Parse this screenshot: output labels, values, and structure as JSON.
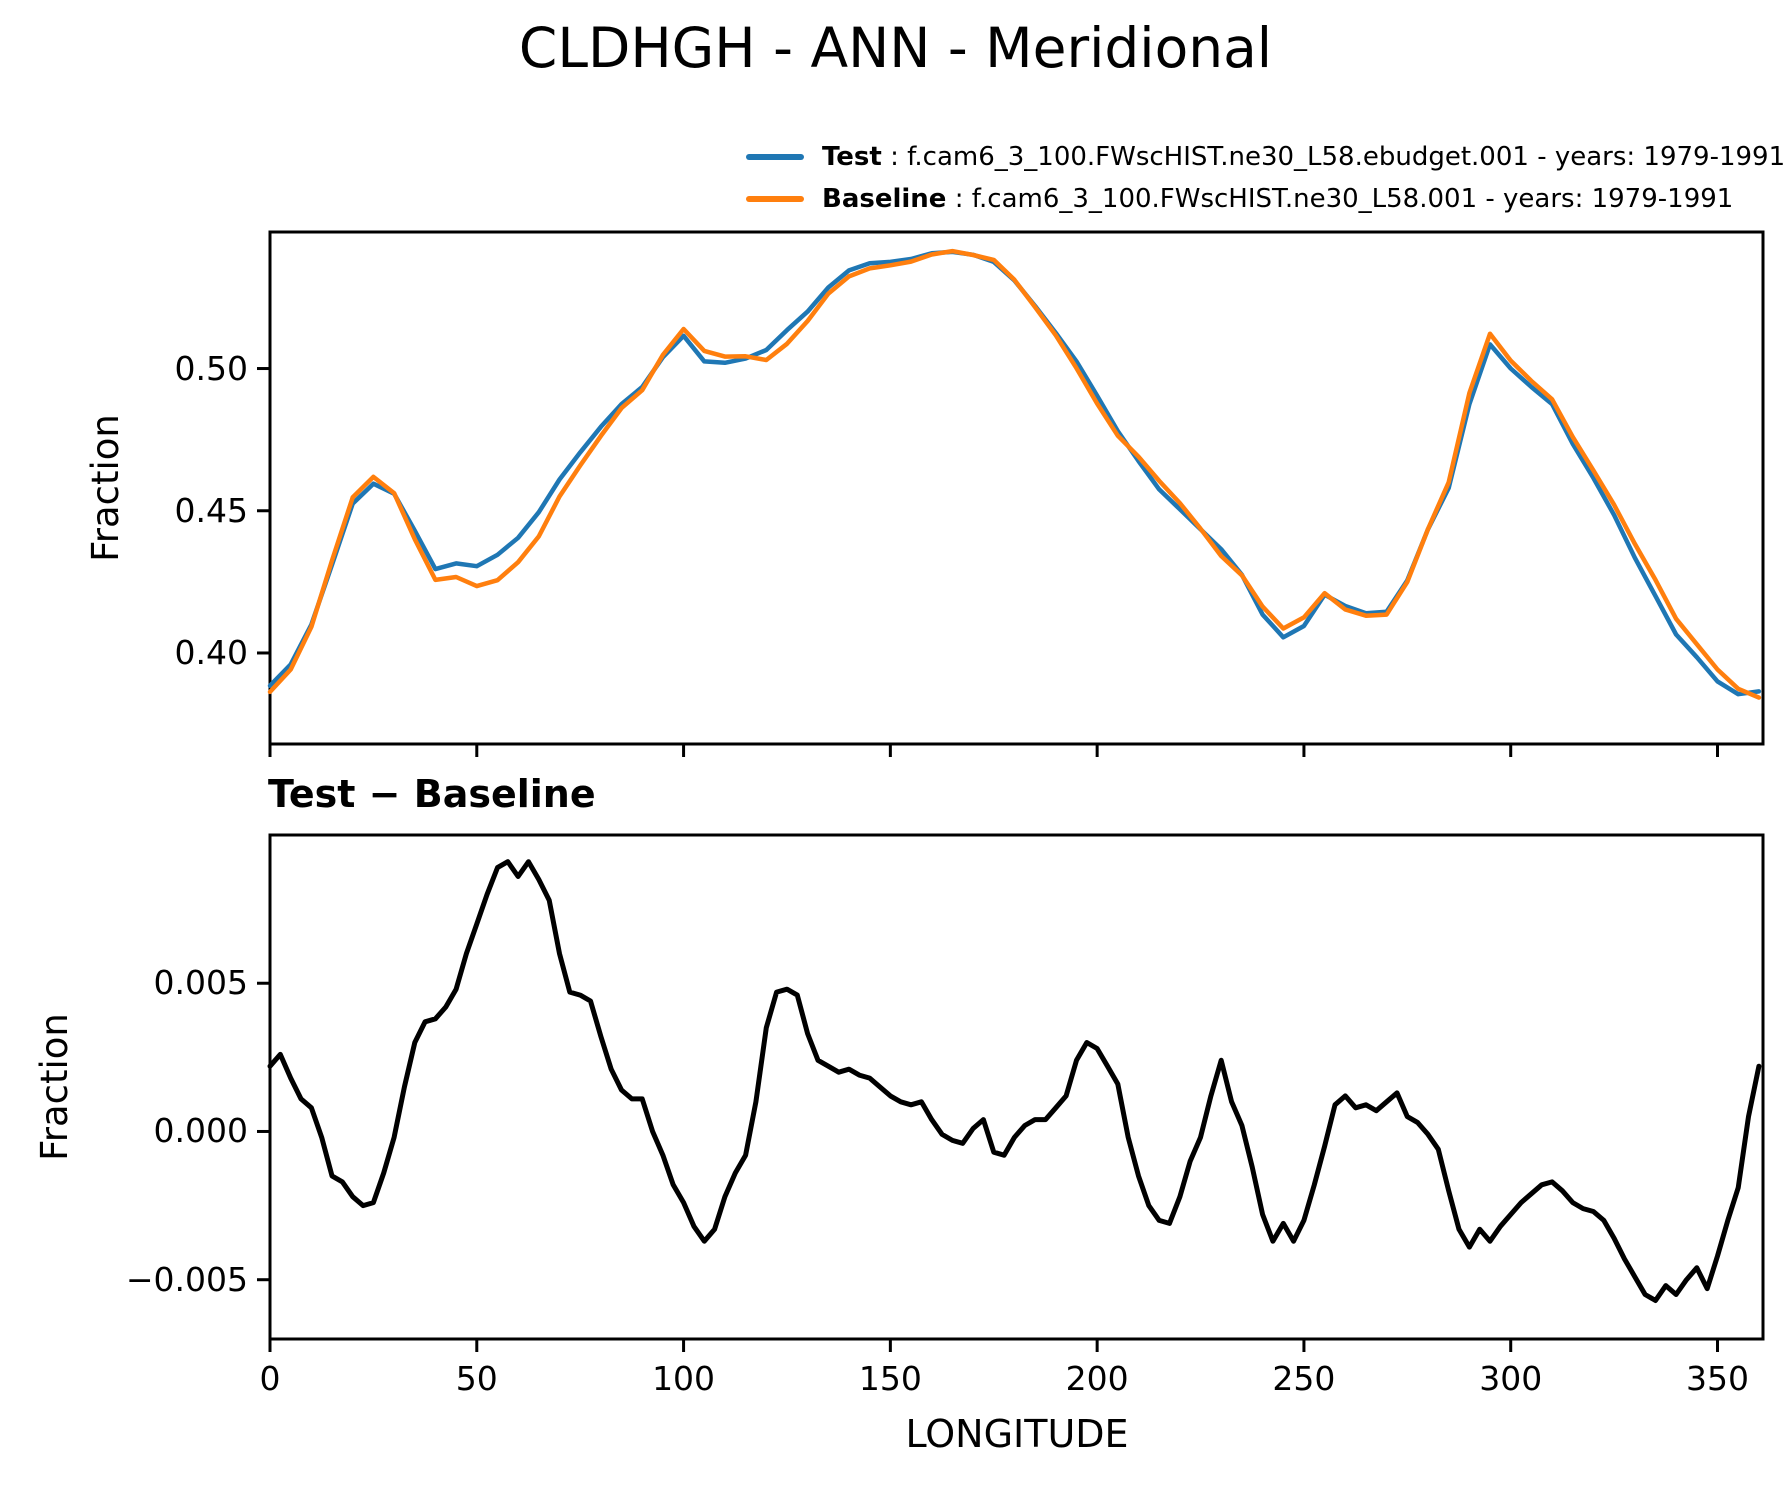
{
  "title": "CLDHGH - ANN - Meridional",
  "legend": [
    {
      "name": "Test",
      "color": "#1f77b4",
      "separator": " : ",
      "text": "f.cam6_3_100.FWscHIST.ne30_L58.ebudget.001 - years: 1979-1991"
    },
    {
      "name": "Baseline",
      "color": "#ff7f0e",
      "separator": " : ",
      "text": "f.cam6_3_100.FWscHIST.ne30_L58.001 - years: 1979-1991"
    }
  ],
  "colors": {
    "test": "#1f77b4",
    "baseline": "#ff7f0e",
    "difference": "#000000",
    "axes": "#000000",
    "background": "#ffffff"
  },
  "chart_data": [
    {
      "type": "line",
      "panel": "top",
      "ylabel": "Fraction",
      "xlabel": "",
      "grid": false,
      "legend_position": "above-axes, frameless, two rows",
      "xlim": [
        0,
        361
      ],
      "ylim": [
        0.368,
        0.548
      ],
      "xticks": {
        "values": [
          0,
          50,
          100,
          150,
          200,
          250,
          300,
          350
        ],
        "labels": []
      },
      "yticks": {
        "values": [
          0.4,
          0.45,
          0.5
        ],
        "labels": [
          "0.40",
          "0.45",
          "0.50"
        ]
      },
      "x": [
        0,
        5,
        10,
        15,
        20,
        25,
        30,
        35,
        40,
        45,
        50,
        55,
        60,
        65,
        70,
        75,
        80,
        85,
        90,
        95,
        100,
        105,
        110,
        115,
        120,
        125,
        130,
        135,
        140,
        145,
        150,
        155,
        160,
        165,
        170,
        175,
        180,
        185,
        190,
        195,
        200,
        205,
        210,
        215,
        220,
        225,
        230,
        235,
        240,
        245,
        250,
        255,
        260,
        265,
        270,
        275,
        280,
        285,
        290,
        295,
        300,
        305,
        310,
        315,
        320,
        325,
        330,
        335,
        340,
        345,
        350,
        355,
        360
      ],
      "series": [
        {
          "name": "Test",
          "color": "#1f77b4",
          "values": [
            0.3885,
            0.396,
            0.41,
            0.431,
            0.4525,
            0.4595,
            0.456,
            0.443,
            0.4295,
            0.4315,
            0.4305,
            0.4345,
            0.4405,
            0.4495,
            0.461,
            0.4705,
            0.4795,
            0.4875,
            0.4935,
            0.504,
            0.5115,
            0.5025,
            0.502,
            0.5035,
            0.5065,
            0.5135,
            0.52,
            0.5285,
            0.5345,
            0.537,
            0.5375,
            0.5385,
            0.5405,
            0.541,
            0.54,
            0.5375,
            0.531,
            0.522,
            0.5125,
            0.5025,
            0.4905,
            0.478,
            0.4675,
            0.4575,
            0.4505,
            0.4435,
            0.4365,
            0.4275,
            0.4135,
            0.4055,
            0.4095,
            0.4205,
            0.4165,
            0.414,
            0.4145,
            0.4255,
            0.4435,
            0.458,
            0.4875,
            0.5085,
            0.5,
            0.4935,
            0.4875,
            0.4735,
            0.4615,
            0.4485,
            0.4335,
            0.42,
            0.4065,
            0.3985,
            0.39,
            0.3855,
            0.3865
          ]
        },
        {
          "name": "Baseline",
          "color": "#ff7f0e",
          "values": [
            0.3863,
            0.3942,
            0.4092,
            0.4325,
            0.4547,
            0.4619,
            0.4562,
            0.44,
            0.4257,
            0.4267,
            0.4235,
            0.4256,
            0.4319,
            0.441,
            0.455,
            0.4659,
            0.4763,
            0.4861,
            0.4924,
            0.5048,
            0.5139,
            0.5062,
            0.5042,
            0.5043,
            0.503,
            0.5087,
            0.5167,
            0.5263,
            0.5324,
            0.5352,
            0.5363,
            0.5376,
            0.5401,
            0.5413,
            0.5399,
            0.5382,
            0.5312,
            0.5216,
            0.5117,
            0.5001,
            0.4877,
            0.4764,
            0.469,
            0.4605,
            0.4527,
            0.4437,
            0.4341,
            0.4273,
            0.4163,
            0.4086,
            0.4125,
            0.421,
            0.4153,
            0.4131,
            0.4135,
            0.425,
            0.4436,
            0.46,
            0.4914,
            0.5122,
            0.5028,
            0.4956,
            0.4892,
            0.4759,
            0.4642,
            0.4521,
            0.4384,
            0.4257,
            0.412,
            0.4031,
            0.3942,
            0.3874,
            0.3843
          ]
        }
      ]
    },
    {
      "type": "line",
      "panel": "bottom",
      "title": "Test − Baseline",
      "ylabel": "Fraction",
      "xlabel": "LONGITUDE",
      "grid": false,
      "xlim": [
        0,
        361
      ],
      "ylim": [
        -0.007,
        0.01
      ],
      "xticks": {
        "values": [
          0,
          50,
          100,
          150,
          200,
          250,
          300,
          350
        ],
        "labels": [
          "0",
          "50",
          "100",
          "150",
          "200",
          "250",
          "300",
          "350"
        ]
      },
      "yticks": {
        "values": [
          0.005,
          0.0,
          -0.005
        ],
        "labels": [
          "0.005",
          "0.000",
          "−0.005"
        ]
      },
      "x_start": 0,
      "x_step": 2.5,
      "series": [
        {
          "name": "Test − Baseline",
          "color": "#000000",
          "values": [
            0.0022,
            0.0026,
            0.0018,
            0.0011,
            0.0008,
            -0.0002,
            -0.0015,
            -0.0017,
            -0.0022,
            -0.0025,
            -0.0024,
            -0.0014,
            -0.0002,
            0.0015,
            0.003,
            0.0037,
            0.0038,
            0.0042,
            0.0048,
            0.006,
            0.007,
            0.008,
            0.0089,
            0.0091,
            0.0086,
            0.0091,
            0.0085,
            0.0078,
            0.006,
            0.0047,
            0.0046,
            0.0044,
            0.0032,
            0.0021,
            0.0014,
            0.0011,
            0.0011,
            0.0,
            -0.0008,
            -0.0018,
            -0.0024,
            -0.0032,
            -0.0037,
            -0.0033,
            -0.0022,
            -0.0014,
            -0.0008,
            0.001,
            0.0035,
            0.0047,
            0.0048,
            0.0046,
            0.0033,
            0.0024,
            0.0022,
            0.002,
            0.0021,
            0.0019,
            0.0018,
            0.0015,
            0.0012,
            0.001,
            0.0009,
            0.001,
            0.0004,
            -0.0001,
            -0.0003,
            -0.0004,
            0.0001,
            0.0004,
            -0.0007,
            -0.0008,
            -0.0002,
            0.0002,
            0.0004,
            0.0004,
            0.0008,
            0.0012,
            0.0024,
            0.003,
            0.0028,
            0.0022,
            0.0016,
            -0.0002,
            -0.0015,
            -0.0025,
            -0.003,
            -0.0031,
            -0.0022,
            -0.001,
            -0.0002,
            0.0012,
            0.0024,
            0.001,
            0.0002,
            -0.0012,
            -0.0028,
            -0.0037,
            -0.0031,
            -0.0037,
            -0.003,
            -0.0018,
            -0.0005,
            0.0009,
            0.0012,
            0.0008,
            0.0009,
            0.0007,
            0.001,
            0.0013,
            0.0005,
            0.0003,
            -0.0001,
            -0.0006,
            -0.002,
            -0.0033,
            -0.0039,
            -0.0033,
            -0.0037,
            -0.0032,
            -0.0028,
            -0.0024,
            -0.0021,
            -0.0018,
            -0.0017,
            -0.002,
            -0.0024,
            -0.0026,
            -0.0027,
            -0.003,
            -0.0036,
            -0.0043,
            -0.0049,
            -0.0055,
            -0.0057,
            -0.0052,
            -0.0055,
            -0.005,
            -0.0046,
            -0.0053,
            -0.0042,
            -0.003,
            -0.0019,
            0.0005,
            0.0022
          ]
        }
      ]
    }
  ]
}
